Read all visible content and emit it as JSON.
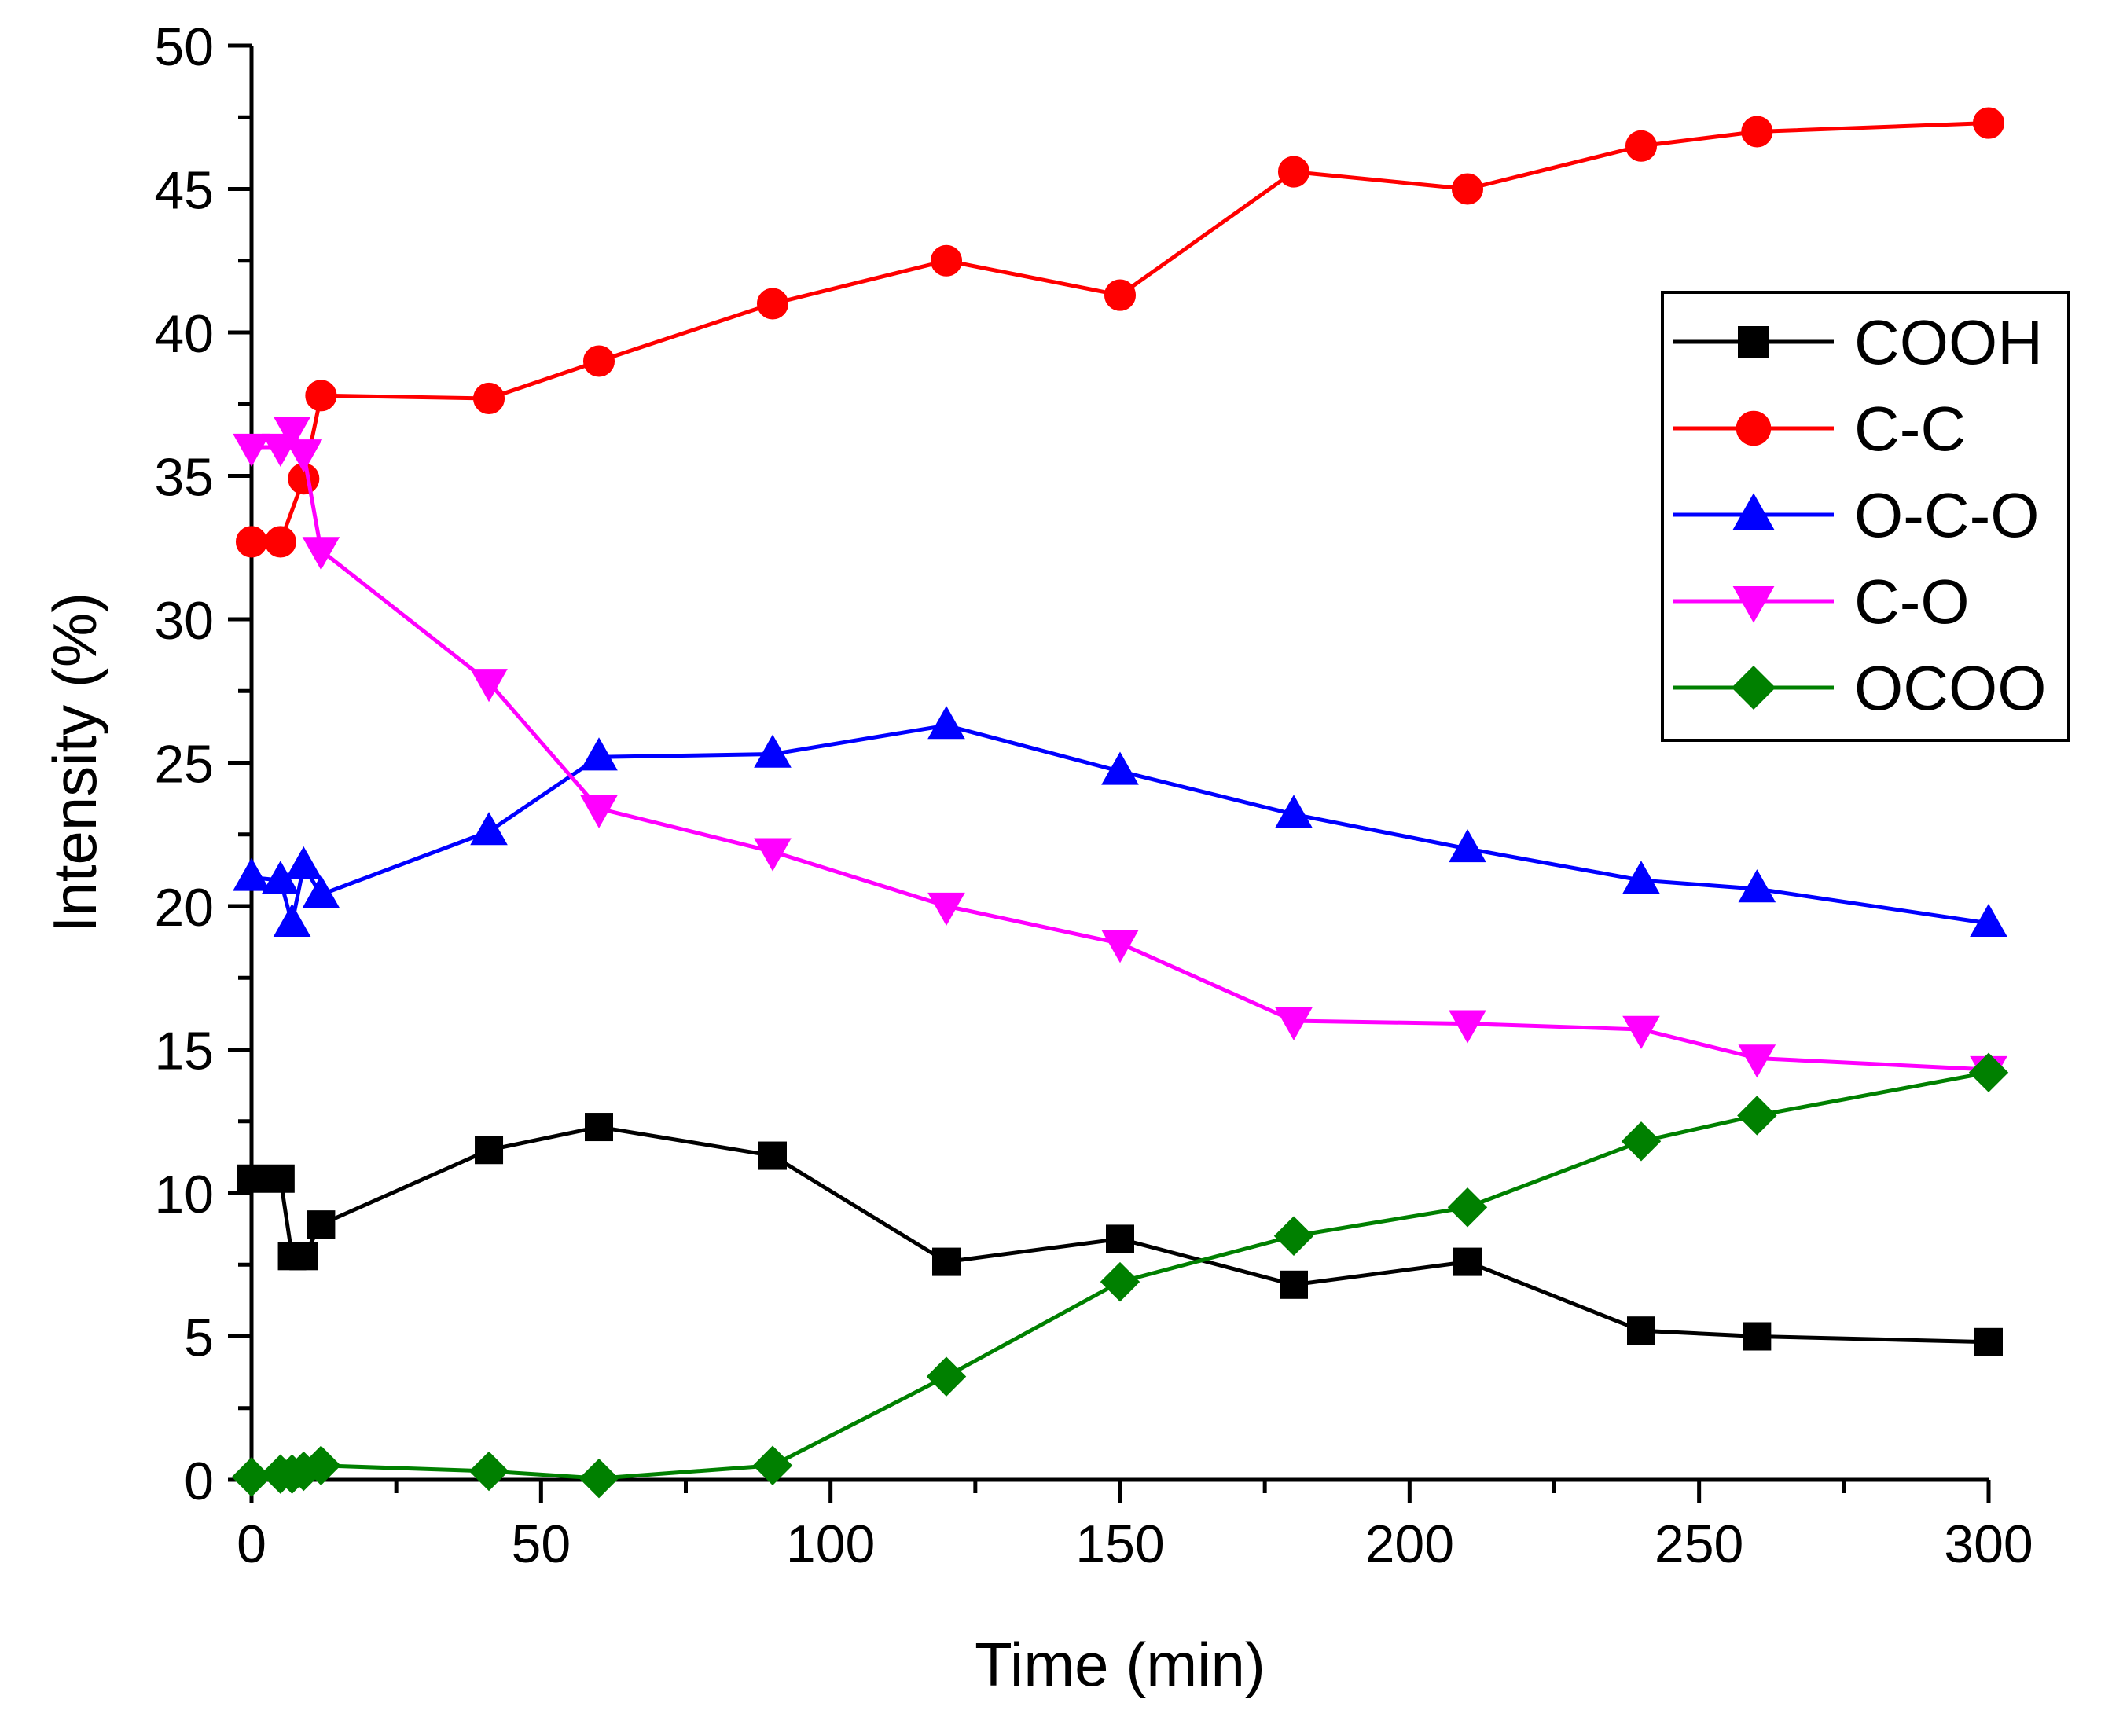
{
  "chart_data": {
    "type": "line",
    "title": "",
    "xlabel": "Time (min)",
    "ylabel": "Intensity (%)",
    "xlim": [
      0,
      300
    ],
    "ylim": [
      0,
      50
    ],
    "xticks": [
      0,
      50,
      100,
      150,
      200,
      250,
      300
    ],
    "xtick_labels": [
      "0",
      "50",
      "100",
      "150",
      "200",
      "250",
      "300"
    ],
    "yticks": [
      0,
      5,
      10,
      15,
      20,
      25,
      30,
      35,
      40,
      45,
      50
    ],
    "ytick_labels": [
      "0",
      "5",
      "10",
      "15",
      "20",
      "25",
      "30",
      "35",
      "40",
      "45",
      "50"
    ],
    "grid": false,
    "legend_position": "right",
    "series": [
      {
        "name": "COOH",
        "color": "#000000",
        "marker": "square",
        "x": [
          0,
          5,
          7,
          9,
          12,
          41,
          60,
          90,
          120,
          150,
          180,
          210,
          240,
          260,
          300
        ],
        "y": [
          10.5,
          10.5,
          7.8,
          7.8,
          8.9,
          11.5,
          12.3,
          11.3,
          7.6,
          8.4,
          6.8,
          7.6,
          5.2,
          5.0,
          4.8
        ]
      },
      {
        "name": "C-C",
        "color": "#ff0000",
        "marker": "circle",
        "x": [
          0,
          5,
          9,
          12,
          41,
          60,
          90,
          120,
          150,
          180,
          210,
          240,
          260,
          300
        ],
        "y": [
          32.7,
          32.7,
          34.9,
          37.8,
          37.7,
          39.0,
          41.0,
          42.5,
          41.3,
          45.6,
          45.0,
          46.5,
          47.0,
          47.3
        ]
      },
      {
        "name": "O-C-O",
        "color": "#0000ff",
        "marker": "triangle-up",
        "x": [
          0,
          5,
          7,
          9,
          12,
          41,
          60,
          90,
          120,
          150,
          180,
          210,
          240,
          260,
          300
        ],
        "y": [
          21.0,
          20.9,
          19.4,
          21.4,
          20.4,
          22.6,
          25.2,
          25.3,
          26.3,
          24.7,
          23.2,
          22.0,
          20.9,
          20.6,
          19.4
        ]
      },
      {
        "name": "C-O",
        "color": "#ff00ff",
        "marker": "triangle-down",
        "x": [
          0,
          5,
          7,
          9,
          12,
          41,
          60,
          90,
          120,
          150,
          180,
          210,
          240,
          260,
          300
        ],
        "y": [
          36.0,
          36.0,
          36.6,
          35.8,
          32.4,
          27.8,
          23.4,
          21.9,
          20.0,
          18.7,
          16.0,
          15.9,
          15.7,
          14.7,
          14.3
        ]
      },
      {
        "name": "OCOO",
        "color": "#008000",
        "marker": "diamond",
        "x": [
          0,
          5,
          7,
          9,
          12,
          41,
          60,
          90,
          120,
          150,
          180,
          210,
          240,
          260,
          300
        ],
        "y": [
          0.1,
          0.2,
          0.2,
          0.3,
          0.5,
          0.3,
          0.05,
          0.5,
          3.6,
          6.9,
          8.5,
          9.5,
          11.8,
          12.7,
          14.2
        ]
      }
    ]
  }
}
